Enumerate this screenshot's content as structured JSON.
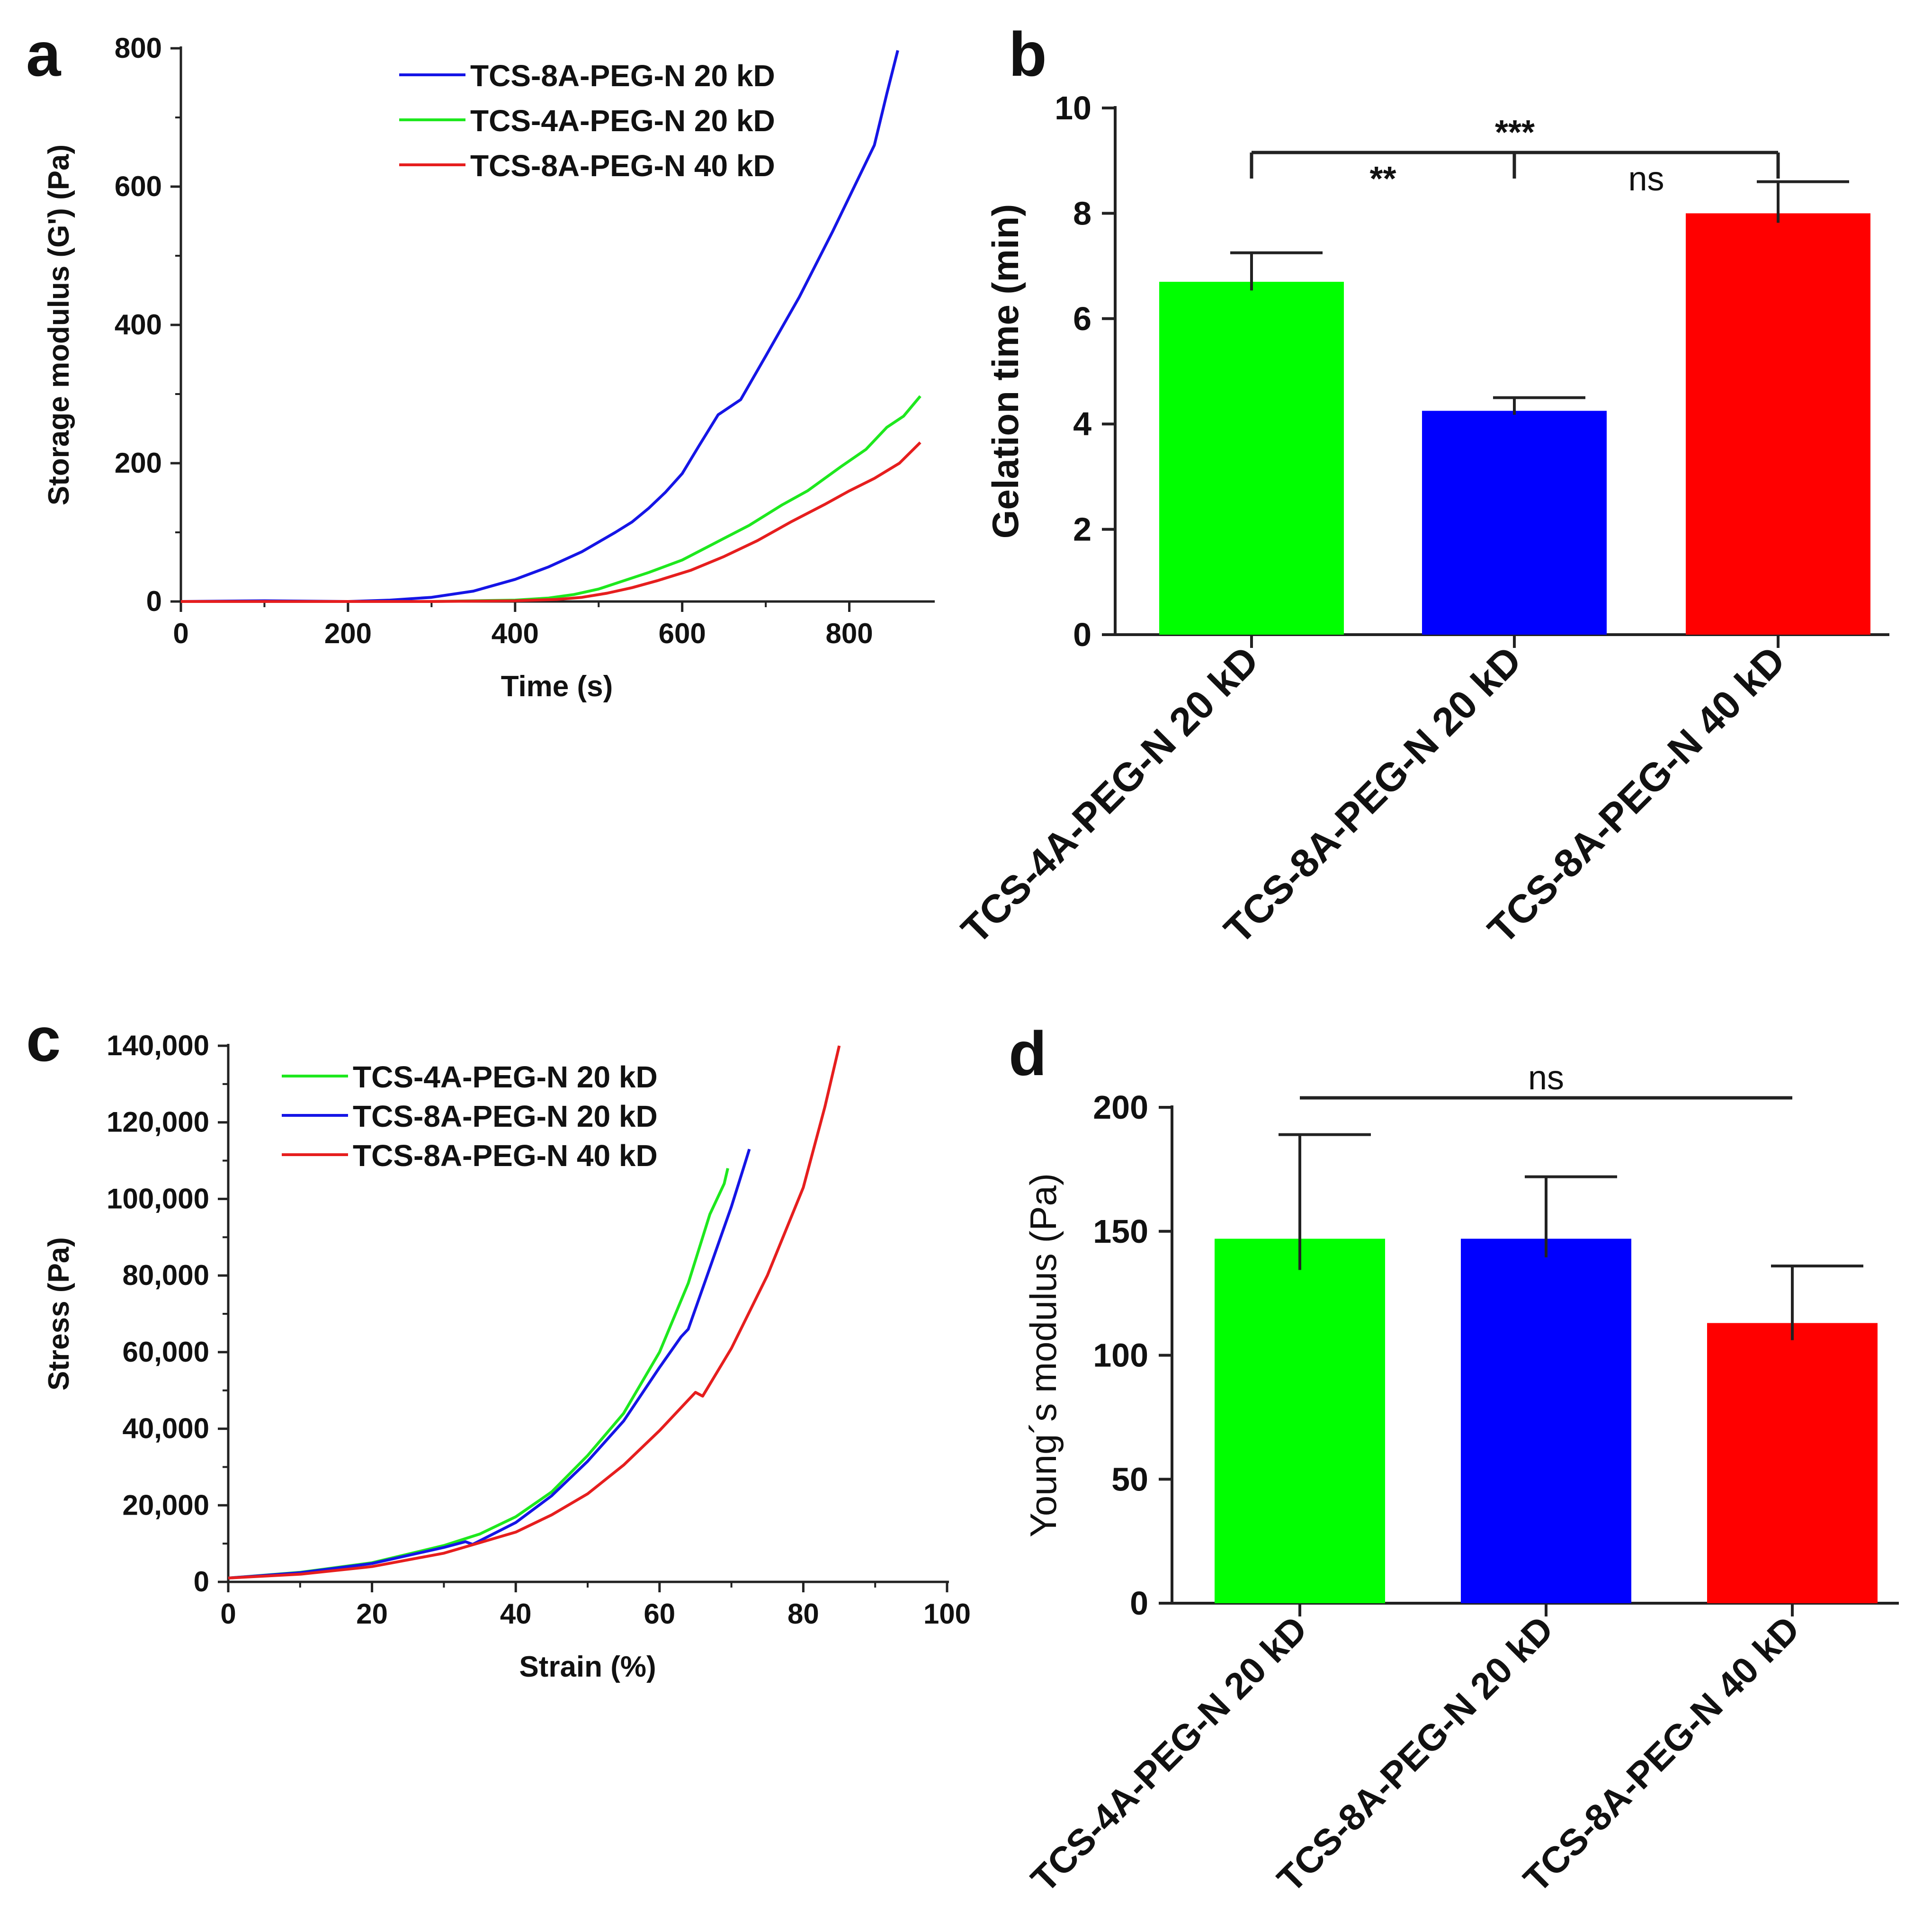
{
  "chart_data": [
    {
      "panel_label": "a",
      "type": "line",
      "title": "",
      "xlabel": "Time (s)",
      "ylabel": "Storage modulus (G') (Pa)",
      "xlim": [
        0,
        900
      ],
      "ylim": [
        0,
        800
      ],
      "xticks": [
        0,
        200,
        400,
        600,
        800
      ],
      "xtick_labels": [
        "0",
        "200",
        "400",
        "600",
        "800"
      ],
      "yticks": [
        0,
        200,
        400,
        600,
        800
      ],
      "ytick_labels": [
        "0",
        "200",
        "400",
        "600",
        "800"
      ],
      "legend_position": "top-right",
      "series": [
        {
          "name": "TCS-8A-PEG-N 20 kD",
          "color": "#1515e6",
          "x": [
            0,
            100,
            200,
            250,
            300,
            350,
            400,
            440,
            480,
            520,
            540,
            560,
            580,
            600,
            620,
            643,
            670,
            700,
            740,
            780,
            810,
            830,
            845,
            858
          ],
          "y": [
            0,
            1,
            0,
            2,
            6,
            15,
            32,
            50,
            72,
            100,
            115,
            135,
            158,
            185,
            225,
            270,
            292,
            355,
            440,
            535,
            610,
            660,
            735,
            797
          ]
        },
        {
          "name": "TCS-4A-PEG-N 20 kD",
          "color": "#1ee81e",
          "x": [
            0,
            100,
            200,
            300,
            400,
            440,
            470,
            500,
            530,
            560,
            600,
            640,
            680,
            720,
            750,
            790,
            820,
            845,
            865,
            885
          ],
          "y": [
            0,
            0,
            0,
            0,
            2,
            5,
            10,
            18,
            30,
            42,
            60,
            85,
            110,
            140,
            160,
            195,
            220,
            252,
            268,
            297
          ]
        },
        {
          "name": "TCS-8A-PEG-N 40 kD",
          "color": "#e61e1e",
          "x": [
            0,
            100,
            200,
            300,
            400,
            450,
            480,
            510,
            540,
            570,
            610,
            650,
            690,
            730,
            770,
            800,
            830,
            860,
            885
          ],
          "y": [
            0,
            0,
            0,
            0,
            1,
            3,
            6,
            12,
            20,
            30,
            45,
            65,
            88,
            115,
            140,
            160,
            178,
            200,
            230
          ]
        }
      ]
    },
    {
      "panel_label": "b",
      "type": "bar",
      "title": "",
      "xlabel": "",
      "ylabel": "Gelation time (min)",
      "ylim": [
        0,
        10
      ],
      "yticks": [
        0,
        2,
        4,
        6,
        8,
        10
      ],
      "ytick_labels": [
        "0",
        "2",
        "4",
        "6",
        "8",
        "10"
      ],
      "categories": [
        "TCS-4A-PEG-N 20 kD",
        "TCS-8A-PEG-N 20 kD",
        "TCS-8A-PEG-N 40 kD"
      ],
      "values": [
        6.7,
        4.25,
        8.0
      ],
      "errors": [
        0.55,
        0.25,
        0.6
      ],
      "colors": [
        "#00ff00",
        "#0000ff",
        "#ff0000"
      ],
      "significance": [
        {
          "label": "***",
          "from": 0,
          "to": 2
        },
        {
          "label": "**",
          "between": [
            0,
            1
          ]
        },
        {
          "label": "ns",
          "between": [
            1,
            2
          ]
        }
      ]
    },
    {
      "panel_label": "c",
      "type": "line",
      "title": "",
      "xlabel": "Strain (%)",
      "ylabel": "Stress (Pa)",
      "xlim": [
        0,
        100
      ],
      "ylim": [
        0,
        140000
      ],
      "xticks": [
        0,
        20,
        40,
        60,
        80,
        100
      ],
      "xtick_labels": [
        "0",
        "20",
        "40",
        "60",
        "80",
        "100"
      ],
      "yticks": [
        0,
        20000,
        40000,
        60000,
        80000,
        100000,
        120000,
        140000
      ],
      "ytick_labels": [
        "0",
        "20,000",
        "40,000",
        "60,000",
        "80,000",
        "100,000",
        "120,000",
        "140,000"
      ],
      "legend_position": "top-left",
      "series": [
        {
          "name": "TCS-4A-PEG-N 20 kD",
          "color": "#1ee81e",
          "x": [
            0,
            10,
            20,
            30,
            35,
            40,
            45,
            50,
            55,
            60,
            64,
            67,
            69,
            69.5
          ],
          "y": [
            1000,
            2500,
            5000,
            9500,
            12500,
            17000,
            23500,
            33000,
            44000,
            60000,
            78000,
            96000,
            104000,
            108000
          ]
        },
        {
          "name": "TCS-8A-PEG-N 20 kD",
          "color": "#1515e6",
          "x": [
            0,
            10,
            20,
            30,
            33,
            34,
            40,
            45,
            50,
            55,
            60,
            63,
            64,
            67,
            70,
            72,
            72.5
          ],
          "y": [
            1000,
            2400,
            4800,
            9000,
            10500,
            9800,
            15500,
            22500,
            31500,
            42000,
            56000,
            64000,
            66000,
            82000,
            98000,
            110000,
            113000
          ]
        },
        {
          "name": "TCS-8A-PEG-N 40 kD",
          "color": "#e61e1e",
          "x": [
            0,
            10,
            20,
            30,
            40,
            45,
            50,
            55,
            60,
            64,
            65,
            66,
            70,
            75,
            80,
            83,
            85
          ],
          "y": [
            1000,
            2000,
            4000,
            7500,
            13000,
            17500,
            23000,
            30500,
            39500,
            47500,
            49500,
            48500,
            61000,
            80000,
            103000,
            124000,
            140000
          ]
        }
      ]
    },
    {
      "panel_label": "d",
      "type": "bar",
      "title": "",
      "xlabel": "",
      "ylabel": "Young´s modulus (Pa)",
      "ylim": [
        0,
        200
      ],
      "yticks": [
        0,
        50,
        100,
        150,
        200
      ],
      "ytick_labels": [
        "0",
        "50",
        "100",
        "150",
        "200"
      ],
      "categories": [
        "TCS-4A-PEG-N 20 kD",
        "TCS-8A-PEG-N 20 kD",
        "TCS-8A-PEG-N 40 kD"
      ],
      "values": [
        147,
        147,
        113
      ],
      "errors": [
        42,
        25,
        23
      ],
      "colors": [
        "#00ff00",
        "#0000ff",
        "#ff0000"
      ],
      "significance": [
        {
          "label": "ns",
          "from": 0,
          "to": 2
        }
      ]
    }
  ]
}
